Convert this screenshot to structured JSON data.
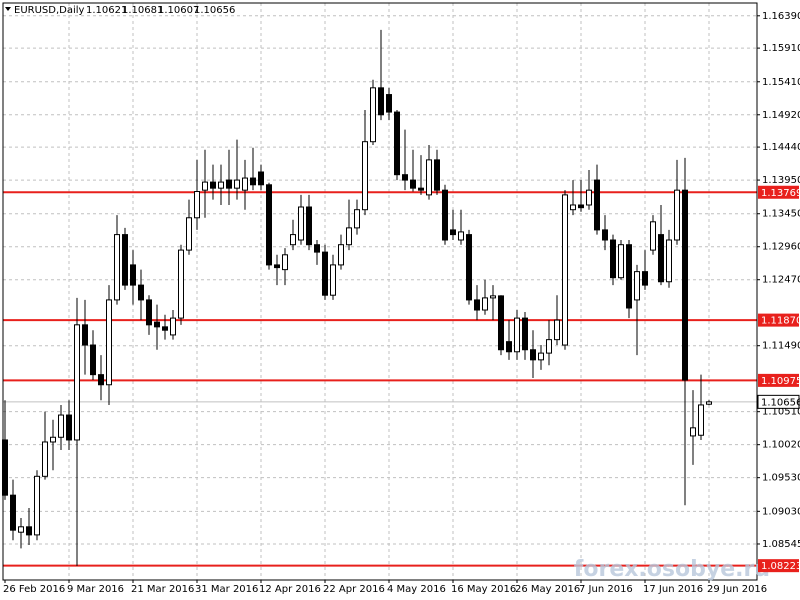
{
  "chart_data": {
    "type": "candlestick",
    "title": "EURUSD,Daily",
    "header_values": [
      1.10621,
      1.10681,
      1.10607,
      1.10656
    ],
    "watermark": "forex.osobye.ru",
    "categories": [
      "26 Feb 2016",
      null,
      null,
      null,
      null,
      null,
      null,
      null,
      "9 Mar 2016",
      null,
      null,
      null,
      null,
      null,
      null,
      null,
      "21 Mar 2016",
      null,
      null,
      null,
      null,
      null,
      null,
      null,
      "31 Mar 2016",
      null,
      null,
      null,
      null,
      null,
      null,
      null,
      "12 Apr 2016",
      null,
      null,
      null,
      null,
      null,
      null,
      null,
      "22 Apr 2016",
      null,
      null,
      null,
      null,
      null,
      null,
      null,
      "4 May 2016",
      null,
      null,
      null,
      null,
      null,
      null,
      null,
      "16 May 2016",
      null,
      null,
      null,
      null,
      null,
      null,
      null,
      "26 May 2016",
      null,
      null,
      null,
      null,
      null,
      null,
      null,
      "7 Jun 2016",
      null,
      null,
      null,
      null,
      null,
      null,
      null,
      "17 Jun 2016",
      null,
      null,
      null,
      null,
      null,
      null,
      null,
      "29 Jun 2016"
    ],
    "open": [
      1.1009,
      1.0927,
      1.0872,
      1.088,
      1.0868,
      1.0955,
      1.1006,
      1.1013,
      1.1046,
      1.1009,
      1.118,
      1.115,
      1.1106,
      1.1091,
      1.1217,
      1.1314,
      1.1269,
      1.1239,
      1.1217,
      1.1184,
      1.1177,
      1.1165,
      1.119,
      1.1291,
      1.1339,
      1.138,
      1.1392,
      1.1383,
      1.1395,
      1.1383,
      1.138,
      1.1398,
      1.1407,
      1.1388,
      1.1269,
      1.1262,
      1.1299,
      1.1306,
      1.1355,
      1.1299,
      1.1288,
      1.1224,
      1.1269,
      1.1299,
      1.1324,
      1.1351,
      1.1452,
      1.1532,
      1.1522,
      1.1496,
      1.1403,
      1.1395,
      1.1383,
      1.1373,
      1.1425,
      1.138,
      1.1321,
      1.1306,
      1.1314,
      1.1217,
      1.1202,
      1.122,
      1.1223,
      1.1155,
      1.114,
      1.119,
      1.1143,
      1.1128,
      1.1138,
      1.1158,
      1.115,
      1.1351,
      1.1358,
      1.1358,
      1.1395,
      1.1321,
      1.1306,
      1.125,
      1.1299,
      1.1217,
      1.1259,
      1.1291,
      1.1314,
      1.1244,
      1.1306,
      1.138,
      1.1015,
      1.1016,
      1.10621
    ],
    "high": [
      1.1068,
      1.095,
      1.0893,
      1.0908,
      1.0964,
      1.1051,
      1.1039,
      1.1061,
      1.1068,
      1.122,
      1.1217,
      1.1172,
      1.1135,
      1.1239,
      1.1343,
      1.1324,
      1.1291,
      1.1262,
      1.1224,
      1.121,
      1.1195,
      1.1202,
      1.1299,
      1.1366,
      1.1425,
      1.144,
      1.1418,
      1.1418,
      1.144,
      1.1455,
      1.1425,
      1.1443,
      1.1418,
      1.1391,
      1.1284,
      1.1294,
      1.1336,
      1.1373,
      1.1373,
      1.1306,
      1.1299,
      1.1284,
      1.1314,
      1.1366,
      1.1366,
      1.1499,
      1.1544,
      1.1618,
      1.1532,
      1.1499,
      1.147,
      1.144,
      1.1432,
      1.1447,
      1.144,
      1.1388,
      1.1351,
      1.1351,
      1.1321,
      1.1239,
      1.1247,
      1.1239,
      1.1224,
      1.1187,
      1.1202,
      1.1199,
      1.1172,
      1.115,
      1.1187,
      1.1224,
      1.138,
      1.1395,
      1.1395,
      1.141,
      1.1418,
      1.1343,
      1.1314,
      1.1306,
      1.1306,
      1.1269,
      1.1291,
      1.1343,
      1.1358,
      1.1321,
      1.1425,
      1.1428,
      1.1083,
      1.1106,
      1.10681
    ],
    "low": [
      1.092,
      1.086,
      1.0848,
      1.0853,
      1.086,
      1.095,
      1.0964,
      1.0994,
      1.0994,
      1.0822,
      1.1106,
      1.1098,
      1.1068,
      1.1061,
      1.121,
      1.1232,
      1.121,
      1.1187,
      1.1165,
      1.1143,
      1.1158,
      1.1158,
      1.118,
      1.1284,
      1.1321,
      1.1339,
      1.1366,
      1.1358,
      1.1358,
      1.1366,
      1.1351,
      1.138,
      1.138,
      1.1262,
      1.1239,
      1.1239,
      1.1291,
      1.1299,
      1.1291,
      1.1269,
      1.1217,
      1.1217,
      1.1262,
      1.1291,
      1.1314,
      1.1343,
      1.1447,
      1.1484,
      1.1484,
      1.1395,
      1.138,
      1.1378,
      1.1373,
      1.1366,
      1.1373,
      1.1299,
      1.1306,
      1.1299,
      1.121,
      1.1187,
      1.1195,
      1.1187,
      1.1135,
      1.1128,
      1.1128,
      1.1128,
      1.1101,
      1.1113,
      1.112,
      1.115,
      1.1143,
      1.1343,
      1.1348,
      1.1351,
      1.1314,
      1.1291,
      1.1239,
      1.1247,
      1.119,
      1.1135,
      1.1232,
      1.1284,
      1.1239,
      1.1235,
      1.1299,
      1.0912,
      1.0972,
      1.1009,
      1.10607
    ],
    "close": [
      1.0927,
      1.0875,
      1.088,
      1.0868,
      1.0955,
      1.1006,
      1.1013,
      1.1046,
      1.1009,
      1.118,
      1.115,
      1.1106,
      1.1091,
      1.1217,
      1.1314,
      1.1239,
      1.1239,
      1.1217,
      1.118,
      1.1177,
      1.1172,
      1.119,
      1.1291,
      1.1339,
      1.1378,
      1.1392,
      1.1383,
      1.1392,
      1.1383,
      1.1395,
      1.1398,
      1.1388,
      1.1388,
      1.1269,
      1.1265,
      1.1284,
      1.1314,
      1.1355,
      1.1299,
      1.1288,
      1.1224,
      1.1269,
      1.1299,
      1.1324,
      1.1351,
      1.1452,
      1.1532,
      1.1492,
      1.1496,
      1.1403,
      1.1395,
      1.1383,
      1.138,
      1.1425,
      1.138,
      1.1306,
      1.1314,
      1.1318,
      1.1217,
      1.1202,
      1.122,
      1.1223,
      1.1143,
      1.114,
      1.119,
      1.1143,
      1.1128,
      1.1138,
      1.1158,
      1.1187,
      1.1373,
      1.1358,
      1.1354,
      1.138,
      1.1321,
      1.1306,
      1.125,
      1.1299,
      1.1205,
      1.1259,
      1.1239,
      1.1333,
      1.1244,
      1.1306,
      1.138,
      1.1098,
      1.1027,
      1.1061,
      1.10656
    ],
    "ylim": [
      1.0801,
      1.1658
    ],
    "yticks": [
      {
        "value": 1.1639,
        "label": "1.16390"
      },
      {
        "value": 1.1591,
        "label": "1.15910"
      },
      {
        "value": 1.1541,
        "label": "1.15410"
      },
      {
        "value": 1.1492,
        "label": "1.14920"
      },
      {
        "value": 1.1444,
        "label": "1.14440"
      },
      {
        "value": 1.1395,
        "label": "1.13950"
      },
      {
        "value": 1.1345,
        "label": "1.13450"
      },
      {
        "value": 1.1296,
        "label": "1.12960"
      },
      {
        "value": 1.1247,
        "label": "1.12470"
      },
      {
        "value": 1.1149,
        "label": "1.11490"
      },
      {
        "value": 1.1051,
        "label": "1.10510"
      },
      {
        "value": 1.1002,
        "label": "1.10020"
      },
      {
        "value": 1.0953,
        "label": "1.09530"
      },
      {
        "value": 1.0903,
        "label": "1.09030"
      },
      {
        "value": 1.08545,
        "label": "1.08545"
      }
    ],
    "grid": true,
    "bull_color": "#ffffff",
    "bear_color": "#000000",
    "levels": [
      {
        "value": 1.13769,
        "color": "#e8201c"
      },
      {
        "value": 1.1187,
        "label": "1.11870",
        "color": "#e8201c"
      },
      {
        "value": 1.10975,
        "color": "#e8201c"
      },
      {
        "value": 1.08223,
        "color": "#e8201c"
      }
    ],
    "last_price": {
      "value": 1.10656,
      "color": "#c0c0c0"
    }
  }
}
